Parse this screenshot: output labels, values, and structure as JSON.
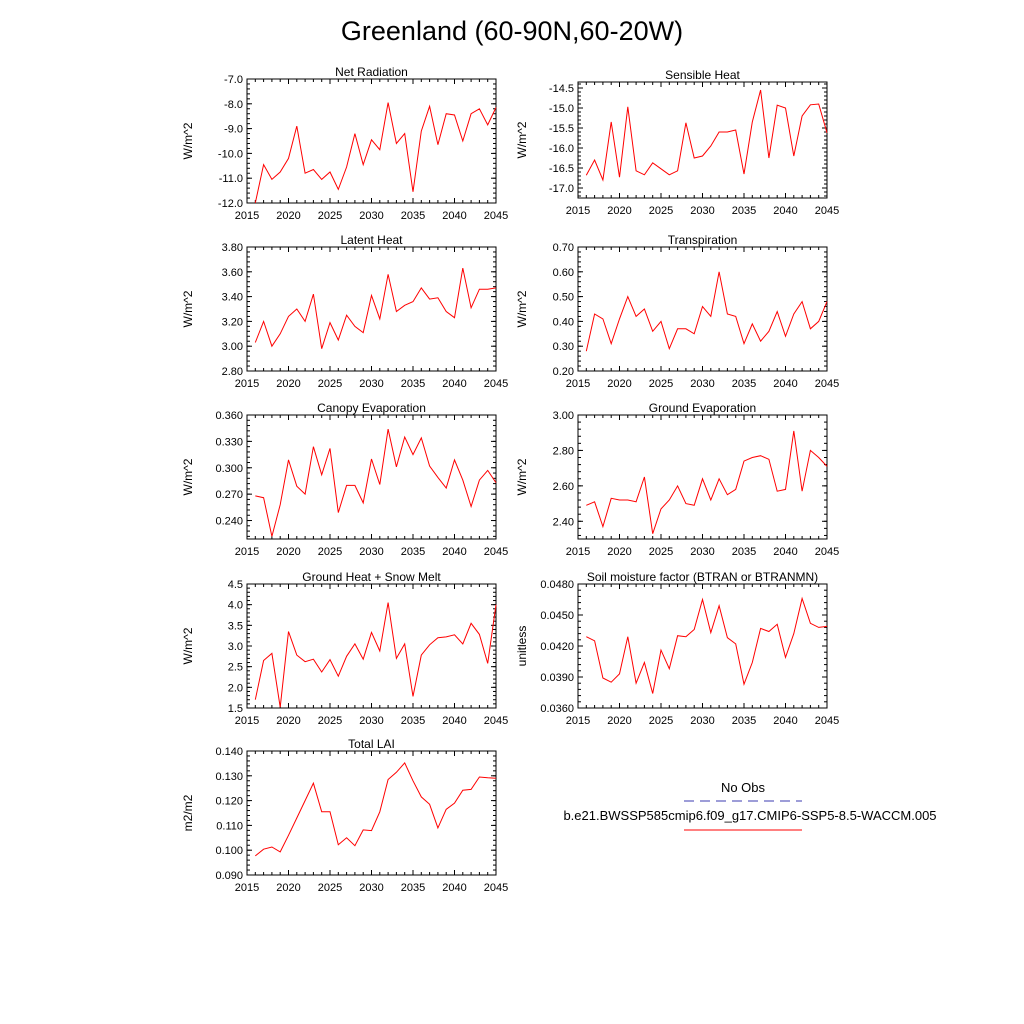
{
  "page_title": "Greenland (60-90N,60-20W)",
  "legend": {
    "obs_label": "No Obs",
    "obs_color": "#3b3bb0",
    "model_label": "b.e21.BWSSP585cmip6.f09_g17.CMIP6-SSP5-8.5-WACCM.005",
    "model_color": "#ff0000"
  },
  "chart_data": [
    {
      "type": "line",
      "title": "Net Radiation",
      "ylabel": "W/m^2",
      "xlabel": "",
      "xlim": [
        2015,
        2045
      ],
      "ylim": [
        -12.0,
        -7.0
      ],
      "xticks": [
        2015,
        2020,
        2025,
        2030,
        2035,
        2040,
        2045
      ],
      "yticks": [
        "-7.0",
        "-8.0",
        "-9.0",
        "-10.0",
        "-11.0",
        "-12.0"
      ],
      "x": [
        2016,
        2017,
        2018,
        2019,
        2020,
        2021,
        2022,
        2023,
        2024,
        2025,
        2026,
        2027,
        2028,
        2029,
        2030,
        2031,
        2032,
        2033,
        2034,
        2035,
        2036,
        2037,
        2038,
        2039,
        2040,
        2041,
        2042,
        2043,
        2044,
        2045
      ],
      "series": [
        {
          "name": "b.e21.BWSSP585cmip6.f09_g17.CMIP6-SSP5-8.5-WACCM.005",
          "values": [
            -12.0,
            -10.45,
            -11.05,
            -10.75,
            -10.2,
            -8.9,
            -10.8,
            -10.65,
            -11.05,
            -10.75,
            -11.45,
            -10.55,
            -9.2,
            -10.45,
            -9.45,
            -9.85,
            -7.95,
            -9.6,
            -9.2,
            -11.55,
            -9.1,
            -8.1,
            -9.65,
            -8.4,
            -8.45,
            -9.5,
            -8.4,
            -8.2,
            -8.85,
            -8.15
          ]
        }
      ]
    },
    {
      "type": "line",
      "title": "Sensible Heat",
      "ylabel": "W/m^2",
      "xlabel": "",
      "xlim": [
        2015,
        2045
      ],
      "ylim": [
        -17.25,
        -14.35
      ],
      "xticks": [
        2015,
        2020,
        2025,
        2030,
        2035,
        2040,
        2045
      ],
      "yticks": [
        "-14.5",
        "-15.0",
        "-15.5",
        "-16.0",
        "-16.5",
        "-17.0"
      ],
      "x": [
        2016,
        2017,
        2018,
        2019,
        2020,
        2021,
        2022,
        2023,
        2024,
        2025,
        2026,
        2027,
        2028,
        2029,
        2030,
        2031,
        2032,
        2033,
        2034,
        2035,
        2036,
        2037,
        2038,
        2039,
        2040,
        2041,
        2042,
        2043,
        2044,
        2045
      ],
      "series": [
        {
          "name": "b.e21.BWSSP585cmip6.f09_g17.CMIP6-SSP5-8.5-WACCM.005",
          "values": [
            -16.68,
            -16.3,
            -16.8,
            -15.35,
            -16.73,
            -14.97,
            -16.57,
            -16.67,
            -16.37,
            -16.52,
            -16.67,
            -16.57,
            -15.37,
            -16.25,
            -16.2,
            -15.95,
            -15.6,
            -15.6,
            -15.55,
            -16.65,
            -15.35,
            -14.55,
            -16.25,
            -14.93,
            -15.0,
            -16.2,
            -15.2,
            -14.92,
            -14.9,
            -15.62
          ]
        }
      ]
    },
    {
      "type": "line",
      "title": "Latent Heat",
      "ylabel": "W/m^2",
      "xlabel": "",
      "xlim": [
        2015,
        2045
      ],
      "ylim": [
        2.8,
        3.8
      ],
      "xticks": [
        2015,
        2020,
        2025,
        2030,
        2035,
        2040,
        2045
      ],
      "yticks": [
        "3.80",
        "3.60",
        "3.40",
        "3.20",
        "3.00",
        "2.80"
      ],
      "x": [
        2016,
        2017,
        2018,
        2019,
        2020,
        2021,
        2022,
        2023,
        2024,
        2025,
        2026,
        2027,
        2028,
        2029,
        2030,
        2031,
        2032,
        2033,
        2034,
        2035,
        2036,
        2037,
        2038,
        2039,
        2040,
        2041,
        2042,
        2043,
        2044,
        2045
      ],
      "series": [
        {
          "name": "b.e21.BWSSP585cmip6.f09_g17.CMIP6-SSP5-8.5-WACCM.005",
          "values": [
            3.03,
            3.2,
            3.0,
            3.1,
            3.24,
            3.3,
            3.2,
            3.42,
            2.98,
            3.19,
            3.05,
            3.25,
            3.16,
            3.11,
            3.41,
            3.22,
            3.58,
            3.28,
            3.33,
            3.36,
            3.47,
            3.38,
            3.39,
            3.28,
            3.23,
            3.63,
            3.31,
            3.46,
            3.46,
            3.47
          ]
        }
      ]
    },
    {
      "type": "line",
      "title": "Transpiration",
      "ylabel": "W/m^2",
      "xlabel": "",
      "xlim": [
        2015,
        2045
      ],
      "ylim": [
        0.2,
        0.7
      ],
      "xticks": [
        2015,
        2020,
        2025,
        2030,
        2035,
        2040,
        2045
      ],
      "yticks": [
        "0.70",
        "0.60",
        "0.50",
        "0.40",
        "0.30",
        "0.20"
      ],
      "x": [
        2016,
        2017,
        2018,
        2019,
        2020,
        2021,
        2022,
        2023,
        2024,
        2025,
        2026,
        2027,
        2028,
        2029,
        2030,
        2031,
        2032,
        2033,
        2034,
        2035,
        2036,
        2037,
        2038,
        2039,
        2040,
        2041,
        2042,
        2043,
        2044,
        2045
      ],
      "series": [
        {
          "name": "b.e21.BWSSP585cmip6.f09_g17.CMIP6-SSP5-8.5-WACCM.005",
          "values": [
            0.28,
            0.43,
            0.41,
            0.31,
            0.41,
            0.5,
            0.42,
            0.45,
            0.36,
            0.4,
            0.29,
            0.37,
            0.37,
            0.35,
            0.46,
            0.42,
            0.6,
            0.43,
            0.42,
            0.31,
            0.39,
            0.32,
            0.36,
            0.44,
            0.34,
            0.43,
            0.48,
            0.37,
            0.4,
            0.48
          ]
        }
      ]
    },
    {
      "type": "line",
      "title": "Canopy Evaporation",
      "ylabel": "W/m^2",
      "xlabel": "",
      "xlim": [
        2015,
        2045
      ],
      "ylim": [
        0.219,
        0.36
      ],
      "xticks": [
        2015,
        2020,
        2025,
        2030,
        2035,
        2040,
        2045
      ],
      "yticks": [
        "0.360",
        "0.330",
        "0.300",
        "0.270",
        "0.240"
      ],
      "x": [
        2016,
        2017,
        2018,
        2019,
        2020,
        2021,
        2022,
        2023,
        2024,
        2025,
        2026,
        2027,
        2028,
        2029,
        2030,
        2031,
        2032,
        2033,
        2034,
        2035,
        2036,
        2037,
        2038,
        2039,
        2040,
        2041,
        2042,
        2043,
        2044,
        2045
      ],
      "series": [
        {
          "name": "b.e21.BWSSP585cmip6.f09_g17.CMIP6-SSP5-8.5-WACCM.005",
          "values": [
            0.268,
            0.266,
            0.222,
            0.258,
            0.309,
            0.279,
            0.27,
            0.324,
            0.292,
            0.322,
            0.249,
            0.28,
            0.28,
            0.26,
            0.31,
            0.281,
            0.344,
            0.301,
            0.335,
            0.315,
            0.334,
            0.302,
            0.289,
            0.277,
            0.309,
            0.286,
            0.256,
            0.286,
            0.297,
            0.283
          ]
        }
      ]
    },
    {
      "type": "line",
      "title": "Ground Evaporation",
      "ylabel": "W/m^2",
      "xlabel": "",
      "xlim": [
        2015,
        2045
      ],
      "ylim": [
        2.3,
        3.0
      ],
      "xticks": [
        2015,
        2020,
        2025,
        2030,
        2035,
        2040,
        2045
      ],
      "yticks": [
        "3.00",
        "2.80",
        "2.60",
        "2.40"
      ],
      "x": [
        2016,
        2017,
        2018,
        2019,
        2020,
        2021,
        2022,
        2023,
        2024,
        2025,
        2026,
        2027,
        2028,
        2029,
        2030,
        2031,
        2032,
        2033,
        2034,
        2035,
        2036,
        2037,
        2038,
        2039,
        2040,
        2041,
        2042,
        2043,
        2044,
        2045
      ],
      "series": [
        {
          "name": "b.e21.BWSSP585cmip6.f09_g17.CMIP6-SSP5-8.5-WACCM.005",
          "values": [
            2.49,
            2.51,
            2.37,
            2.53,
            2.52,
            2.52,
            2.51,
            2.65,
            2.33,
            2.47,
            2.52,
            2.6,
            2.5,
            2.49,
            2.64,
            2.52,
            2.64,
            2.55,
            2.58,
            2.74,
            2.76,
            2.77,
            2.75,
            2.57,
            2.58,
            2.91,
            2.57,
            2.8,
            2.76,
            2.71
          ]
        }
      ]
    },
    {
      "type": "line",
      "title": "Ground Heat + Snow Melt",
      "ylabel": "W/m^2",
      "xlabel": "",
      "xlim": [
        2015,
        2045
      ],
      "ylim": [
        1.5,
        4.5
      ],
      "xticks": [
        2015,
        2020,
        2025,
        2030,
        2035,
        2040,
        2045
      ],
      "yticks": [
        "4.5",
        "4.0",
        "3.5",
        "3.0",
        "2.5",
        "2.0",
        "1.5"
      ],
      "x": [
        2016,
        2017,
        2018,
        2019,
        2020,
        2021,
        2022,
        2023,
        2024,
        2025,
        2026,
        2027,
        2028,
        2029,
        2030,
        2031,
        2032,
        2033,
        2034,
        2035,
        2036,
        2037,
        2038,
        2039,
        2040,
        2041,
        2042,
        2043,
        2044,
        2045
      ],
      "series": [
        {
          "name": "b.e21.BWSSP585cmip6.f09_g17.CMIP6-SSP5-8.5-WACCM.005",
          "values": [
            1.7,
            2.65,
            2.82,
            1.52,
            3.35,
            2.78,
            2.62,
            2.68,
            2.37,
            2.67,
            2.27,
            2.75,
            3.05,
            2.68,
            3.33,
            2.88,
            4.05,
            2.7,
            3.05,
            1.78,
            2.78,
            3.03,
            3.2,
            3.22,
            3.27,
            3.05,
            3.55,
            3.28,
            2.58,
            4.0
          ]
        }
      ]
    },
    {
      "type": "line",
      "title": "Soil moisture factor (BTRAN or BTRANMN)",
      "ylabel": "unitless",
      "xlabel": "",
      "xlim": [
        2015,
        2045
      ],
      "ylim": [
        0.036,
        0.048
      ],
      "xticks": [
        2015,
        2020,
        2025,
        2030,
        2035,
        2040,
        2045
      ],
      "yticks": [
        "0.0480",
        "0.0450",
        "0.0420",
        "0.0390",
        "0.0360"
      ],
      "x": [
        2016,
        2017,
        2018,
        2019,
        2020,
        2021,
        2022,
        2023,
        2024,
        2025,
        2026,
        2027,
        2028,
        2029,
        2030,
        2031,
        2032,
        2033,
        2034,
        2035,
        2036,
        2037,
        2038,
        2039,
        2040,
        2041,
        2042,
        2043,
        2044,
        2045
      ],
      "series": [
        {
          "name": "b.e21.BWSSP585cmip6.f09_g17.CMIP6-SSP5-8.5-WACCM.005",
          "values": [
            0.0429,
            0.0425,
            0.0389,
            0.0385,
            0.0393,
            0.0429,
            0.0384,
            0.0404,
            0.0374,
            0.0416,
            0.0398,
            0.043,
            0.0429,
            0.0436,
            0.0465,
            0.0433,
            0.0459,
            0.0428,
            0.0422,
            0.0383,
            0.0404,
            0.0437,
            0.0434,
            0.0441,
            0.0409,
            0.0432,
            0.0466,
            0.0442,
            0.0438,
            0.0439
          ]
        }
      ]
    },
    {
      "type": "line",
      "title": "Total LAI",
      "ylabel": "m2/m2",
      "xlabel": "",
      "xlim": [
        2015,
        2045
      ],
      "ylim": [
        0.09,
        0.14
      ],
      "xticks": [
        2015,
        2020,
        2025,
        2030,
        2035,
        2040,
        2045
      ],
      "yticks": [
        "0.140",
        "0.130",
        "0.120",
        "0.110",
        "0.100",
        "0.090"
      ],
      "x": [
        2016,
        2017,
        2018,
        2019,
        2020,
        2021,
        2022,
        2023,
        2024,
        2025,
        2026,
        2027,
        2028,
        2029,
        2030,
        2031,
        2032,
        2033,
        2034,
        2035,
        2036,
        2037,
        2038,
        2039,
        2040,
        2041,
        2042,
        2043,
        2044,
        2045
      ],
      "series": [
        {
          "name": "b.e21.BWSSP585cmip6.f09_g17.CMIP6-SSP5-8.5-WACCM.005",
          "values": [
            0.0977,
            0.1004,
            0.1013,
            0.0993,
            0.106,
            0.113,
            0.12,
            0.127,
            0.1155,
            0.1155,
            0.1022,
            0.105,
            0.1018,
            0.1082,
            0.1079,
            0.1155,
            0.1285,
            0.1314,
            0.1352,
            0.128,
            0.1215,
            0.1185,
            0.109,
            0.1165,
            0.119,
            0.1242,
            0.1245,
            0.1295,
            0.1292,
            0.129
          ]
        }
      ]
    }
  ]
}
